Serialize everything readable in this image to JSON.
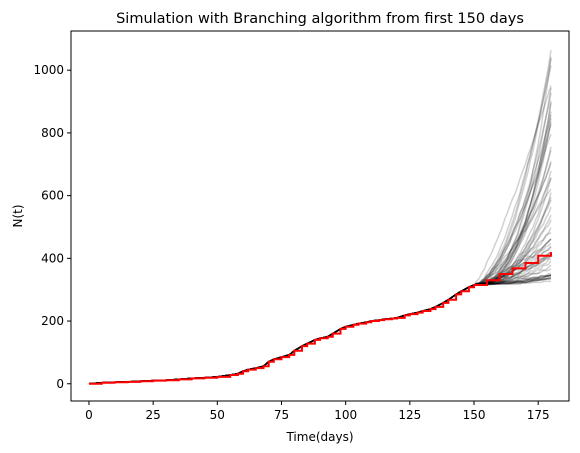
{
  "chart_data": {
    "type": "line",
    "title": "Simulation with Branching algorithm from first 150 days",
    "xlabel": "Time(days)",
    "ylabel": "N(t)",
    "xlim": [
      -7,
      187
    ],
    "ylim": [
      -55,
      1125
    ],
    "xticks": [
      0,
      25,
      50,
      75,
      100,
      125,
      150,
      175
    ],
    "yticks": [
      0,
      200,
      400,
      600,
      800,
      1000
    ],
    "grid": false,
    "legend": "none",
    "colors": {
      "observed": "#ff0000",
      "simulations": "#000000"
    },
    "observed": {
      "x": [
        0,
        5,
        10,
        15,
        20,
        25,
        30,
        35,
        40,
        45,
        50,
        55,
        58,
        60,
        62,
        65,
        68,
        70,
        72,
        75,
        78,
        80,
        83,
        85,
        88,
        90,
        93,
        95,
        98,
        100,
        103,
        105,
        108,
        110,
        113,
        115,
        118,
        120,
        123,
        125,
        128,
        130,
        133,
        135,
        138,
        140,
        143,
        145,
        148,
        150
      ],
      "y": [
        0,
        3,
        5,
        6,
        8,
        10,
        11,
        14,
        17,
        19,
        22,
        28,
        32,
        40,
        45,
        50,
        56,
        70,
        78,
        85,
        92,
        105,
        120,
        128,
        140,
        145,
        150,
        160,
        175,
        182,
        188,
        192,
        196,
        200,
        203,
        206,
        208,
        210,
        218,
        222,
        227,
        232,
        238,
        245,
        258,
        268,
        285,
        295,
        308,
        315
      ]
    },
    "forecast_median": {
      "x": [
        150,
        155,
        160,
        165,
        170,
        175,
        180
      ],
      "y": [
        315,
        330,
        350,
        368,
        385,
        408,
        420
      ]
    },
    "simulation_count": 60,
    "simulation_end_min": 325,
    "simulation_end_max": 1070,
    "simulation_start": {
      "x": 150,
      "y": 315
    },
    "simulation_end_x": 180
  }
}
